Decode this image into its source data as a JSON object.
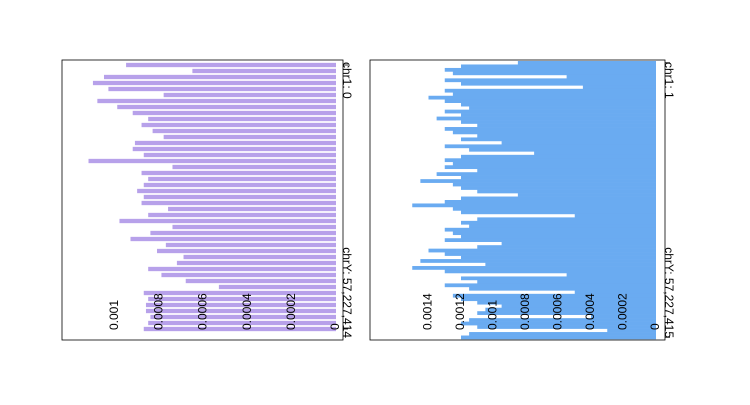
{
  "chart_data": [
    {
      "type": "bar",
      "orientation": "horizontal",
      "color": "#b7a1ea",
      "categories": [
        "chr1: 0",
        null,
        null,
        null,
        null,
        null,
        null,
        null,
        null,
        null,
        null,
        null,
        null,
        null,
        null,
        null,
        null,
        null,
        null,
        null,
        null,
        null,
        null,
        null,
        null,
        null,
        null,
        null,
        null,
        null,
        null,
        null,
        null,
        null,
        null,
        null,
        null,
        null,
        null,
        null,
        null,
        null,
        null,
        null,
        "chrY: 57,227,414"
      ],
      "values": [
        0.00095,
        0.00065,
        0.00105,
        0.0011,
        0.00103,
        0.00078,
        0.00108,
        0.00099,
        0.00092,
        0.00085,
        0.00088,
        0.00083,
        0.00078,
        0.00091,
        0.00092,
        0.00087,
        0.00112,
        0.00074,
        0.00088,
        0.00085,
        0.00087,
        0.0009,
        0.00087,
        0.00088,
        0.00076,
        0.00085,
        0.00098,
        0.00074,
        0.00084,
        0.00093,
        0.00077,
        0.00081,
        0.00069,
        0.00072,
        0.00085,
        0.00079,
        0.00068,
        0.00053,
        0.00087,
        0.00085,
        0.00086,
        0.00086,
        0.00084,
        0.00085,
        0.00087
      ],
      "xlim": [
        0,
        0.00124
      ],
      "xticks": [
        0,
        0.0002,
        0.0004,
        0.0006,
        0.0008,
        0.001
      ]
    },
    {
      "type": "bar",
      "orientation": "horizontal",
      "color": "#6aabf1",
      "categories": [
        "chr1: 1",
        null,
        null,
        null,
        null,
        null,
        null,
        null,
        null,
        null,
        null,
        null,
        null,
        null,
        null,
        null,
        null,
        null,
        null,
        null,
        null,
        null,
        null,
        null,
        null,
        null,
        null,
        null,
        null,
        null,
        null,
        null,
        null,
        null,
        null,
        null,
        null,
        null,
        null,
        null,
        null,
        null,
        null,
        null,
        null,
        null,
        null,
        null,
        null,
        null,
        null,
        null,
        null,
        null,
        null,
        null,
        null,
        null,
        null,
        null,
        null,
        null,
        null,
        null,
        null,
        null,
        null,
        null,
        null,
        null,
        null,
        null,
        null,
        null,
        null,
        null,
        null,
        null,
        null,
        "chrY: 57,227,415"
      ],
      "values": [
        0.00085,
        0.0012,
        0.0013,
        0.00125,
        0.00055,
        0.0013,
        0.0012,
        0.00045,
        0.0013,
        0.00125,
        0.0014,
        0.0013,
        0.0012,
        0.00115,
        0.0013,
        0.0012,
        0.00135,
        0.0012,
        0.0011,
        0.0013,
        0.00125,
        0.0011,
        0.0012,
        0.00095,
        0.0013,
        0.00115,
        0.00075,
        0.0012,
        0.0013,
        0.00125,
        0.0013,
        0.0011,
        0.00135,
        0.0012,
        0.00145,
        0.00125,
        0.0012,
        0.0011,
        0.00085,
        0.0012,
        0.0013,
        0.0015,
        0.00125,
        0.0012,
        0.0005,
        0.0011,
        0.0012,
        0.00115,
        0.0013,
        0.00125,
        0.0012,
        0.0013,
        0.00095,
        0.0011,
        0.0014,
        0.0013,
        0.0012,
        0.00145,
        0.00105,
        0.0015,
        0.0013,
        0.00055,
        0.0012,
        0.0011,
        0.0013,
        0.00115,
        0.0005,
        0.00125,
        0.0012,
        0.0011,
        0.00095,
        0.00105,
        0.0011,
        0.0004,
        0.00115,
        0.0012,
        0.0011,
        0.0003,
        0.00115,
        0.0012
      ],
      "xlim": [
        0,
        0.00176
      ],
      "xticks": [
        0,
        0.0002,
        0.0004,
        0.0006,
        0.0008,
        0.001,
        0.0012,
        0.0014
      ]
    }
  ]
}
